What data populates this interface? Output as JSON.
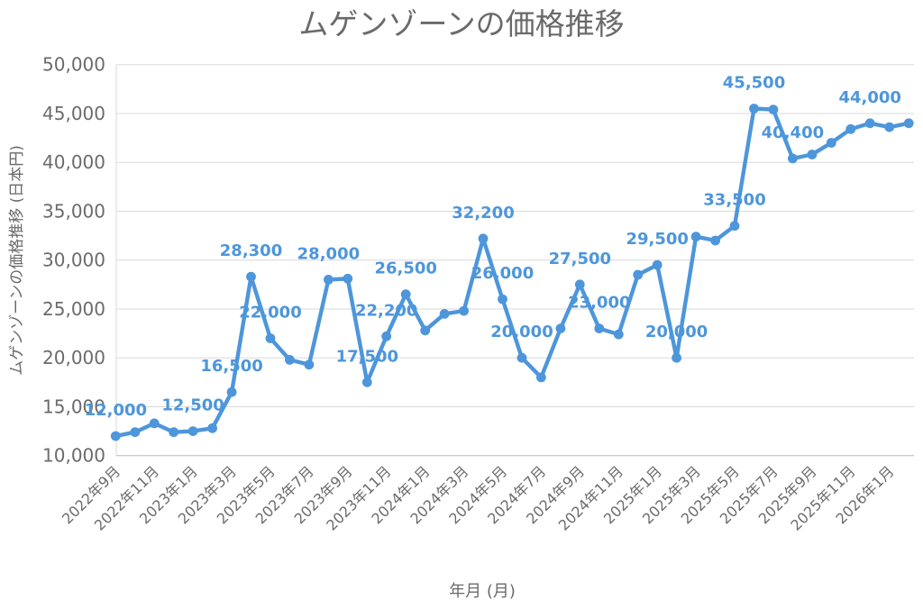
{
  "chart_data": {
    "type": "line",
    "title": "ムゲンゾーンの価格推移",
    "xlabel": "年月 (月)",
    "ylabel": "ムゲンゾーンの価格推移 (日本円)",
    "x": [
      "2022年9月",
      "2022年10月",
      "2022年11月",
      "2022年12月",
      "2023年1月",
      "2023年2月",
      "2023年3月",
      "2023年4月",
      "2023年5月",
      "2023年6月",
      "2023年7月",
      "2023年8月",
      "2023年9月",
      "2023年10月",
      "2023年11月",
      "2023年12月",
      "2024年1月",
      "2024年2月",
      "2024年3月",
      "2024年4月",
      "2024年5月",
      "2024年6月",
      "2024年7月",
      "2024年8月",
      "2024年9月",
      "2024年10月",
      "2024年11月",
      "2024年12月",
      "2025年1月",
      "2025年2月",
      "2025年3月",
      "2025年4月",
      "2025年5月",
      "2025年6月",
      "2025年7月",
      "2025年8月",
      "2025年9月",
      "2025年10月",
      "2025年11月",
      "2025年12月",
      "2026年1月",
      "2026年2月"
    ],
    "values": [
      12000,
      12400,
      13300,
      12400,
      12500,
      12800,
      16500,
      28300,
      22000,
      19800,
      19300,
      28000,
      28100,
      17500,
      22200,
      26500,
      22800,
      24500,
      24800,
      32200,
      26000,
      20000,
      18000,
      23000,
      27500,
      23000,
      22400,
      28500,
      29500,
      20000,
      32400,
      32000,
      33500,
      45500,
      45400,
      40400,
      40800,
      42000,
      43400,
      44000,
      43600,
      44000
    ],
    "labeled_points": [
      0,
      4,
      6,
      7,
      8,
      11,
      13,
      14,
      15,
      19,
      20,
      21,
      24,
      25,
      28,
      29,
      32,
      33,
      35,
      39
    ],
    "x_tick_labels": [
      "2022年9月",
      "2022年11月",
      "2023年1月",
      "2023年3月",
      "2023年5月",
      "2023年7月",
      "2023年9月",
      "2023年11月",
      "2024年1月",
      "2024年3月",
      "2024年5月",
      "2024年7月",
      "2024年9月",
      "2024年11月",
      "2025年1月",
      "2025年3月",
      "2025年5月",
      "2025年7月",
      "2025年9月",
      "2025年11月",
      "2026年1月"
    ],
    "x_tick_step": 2,
    "ylim": [
      10000,
      50000
    ],
    "y_ticks": [
      10000,
      15000,
      20000,
      25000,
      30000,
      35000,
      40000,
      45000,
      50000
    ],
    "y_tick_labels": [
      "10,000",
      "15,000",
      "20,000",
      "25,000",
      "30,000",
      "35,000",
      "40,000",
      "45,000",
      "50,000"
    ],
    "grid": true,
    "legend_position": "none",
    "colors": {
      "line": "#4D96DB",
      "marker": "#4D96DB",
      "data_label": "#4D96DB",
      "gridline": "#D9D9D9",
      "axis_line": "#C6C6C6",
      "text": "#6b6b6b",
      "title": "#6a6a6a",
      "background": "#FFFFFF"
    }
  }
}
